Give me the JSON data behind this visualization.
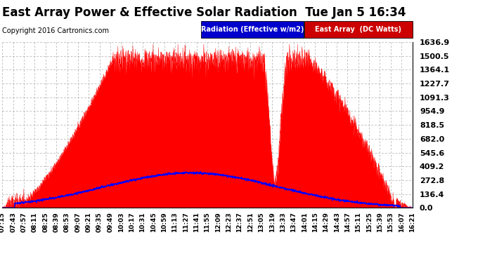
{
  "title": "East Array Power & Effective Solar Radiation  Tue Jan 5 16:34",
  "copyright": "Copyright 2016 Cartronics.com",
  "legend_radiation": "Radiation (Effective w/m2)",
  "legend_east": "East Array  (DC Watts)",
  "legend_radiation_bg": "#0000cc",
  "legend_east_bg": "#cc0000",
  "y_ticks": [
    0.0,
    136.4,
    272.8,
    409.2,
    545.6,
    682.0,
    818.5,
    954.9,
    1091.3,
    1227.7,
    1364.1,
    1500.5,
    1636.9
  ],
  "y_max": 1636.9,
  "background_color": "#ffffff",
  "grid_color": "#aaaaaa",
  "title_fontsize": 12,
  "copyright_fontsize": 7,
  "x_label_fontsize": 6.5,
  "y_label_fontsize": 8,
  "x_tick_labels": [
    "07:15",
    "07:43",
    "07:57",
    "08:11",
    "08:25",
    "08:39",
    "08:53",
    "09:07",
    "09:21",
    "09:35",
    "09:49",
    "10:03",
    "10:17",
    "10:31",
    "10:45",
    "10:59",
    "11:13",
    "11:27",
    "11:41",
    "11:55",
    "12:09",
    "12:23",
    "12:37",
    "12:51",
    "13:05",
    "13:19",
    "13:33",
    "13:47",
    "14:01",
    "14:15",
    "14:29",
    "14:43",
    "14:57",
    "15:11",
    "15:25",
    "15:39",
    "15:53",
    "16:07",
    "16:21"
  ]
}
